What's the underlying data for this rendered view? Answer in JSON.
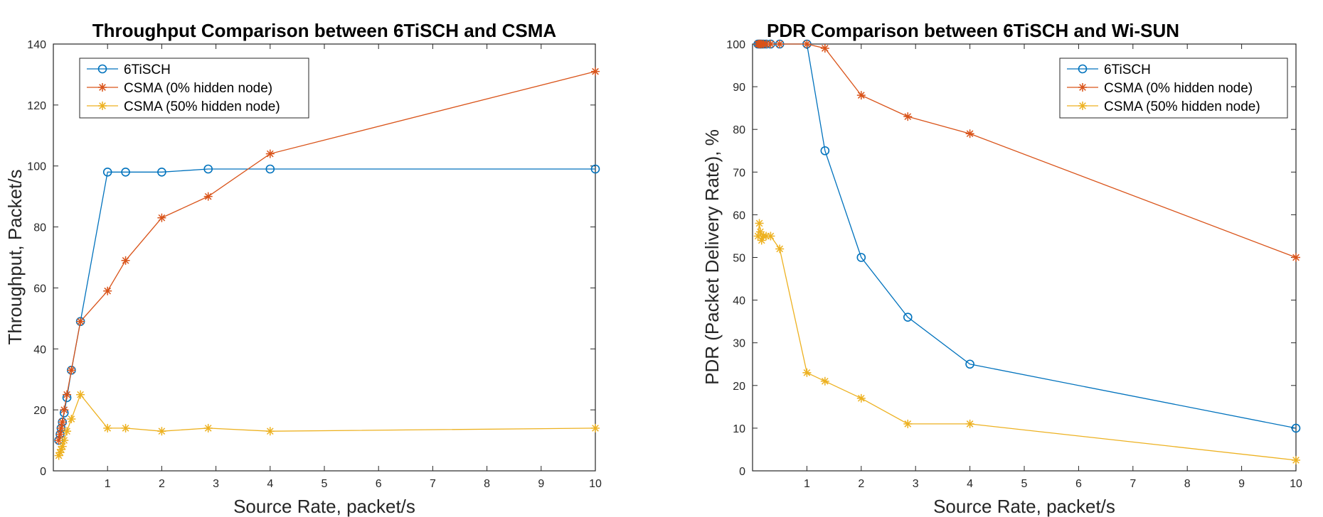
{
  "colors": {
    "blue": "#0072BD",
    "orange": "#D95319",
    "yellow": "#EDB120",
    "axis": "#262626"
  },
  "chart_data": [
    {
      "type": "line",
      "title": "Throughput Comparison between 6TiSCH and CSMA",
      "xlabel": "Source Rate, packet/s",
      "ylabel": "Throughput, Packet/s",
      "xlim": [
        0,
        10
      ],
      "ylim": [
        0,
        140
      ],
      "xticks": [
        1,
        2,
        3,
        4,
        5,
        6,
        7,
        8,
        9,
        10
      ],
      "yticks": [
        0,
        20,
        40,
        60,
        80,
        100,
        120,
        140
      ],
      "legend_position": "top-left",
      "series": [
        {
          "name": "6TiSCH",
          "color": "#0072BD",
          "marker": "circle",
          "x": [
            0.1,
            0.125,
            0.143,
            0.167,
            0.2,
            0.25,
            0.333,
            0.5,
            1,
            1.333,
            2,
            2.857,
            4,
            10
          ],
          "y": [
            10,
            12,
            14,
            16,
            19,
            24,
            33,
            49,
            98,
            98,
            98,
            99,
            99,
            99
          ]
        },
        {
          "name": "CSMA (0% hidden node)",
          "color": "#D95319",
          "marker": "asterisk",
          "x": [
            0.1,
            0.125,
            0.143,
            0.167,
            0.2,
            0.25,
            0.333,
            0.5,
            1,
            1.333,
            2,
            2.857,
            4,
            10
          ],
          "y": [
            10,
            12,
            14,
            16,
            20,
            25,
            33,
            49,
            59,
            69,
            83,
            90,
            104,
            131
          ]
        },
        {
          "name": "CSMA (50% hidden node)",
          "color": "#EDB120",
          "marker": "asterisk",
          "x": [
            0.1,
            0.125,
            0.143,
            0.167,
            0.2,
            0.25,
            0.333,
            0.5,
            1,
            1.333,
            2,
            2.857,
            4,
            10
          ],
          "y": [
            5,
            6,
            7,
            8,
            10,
            13,
            17,
            25,
            14,
            14,
            13,
            14,
            13,
            14
          ]
        }
      ]
    },
    {
      "type": "line",
      "title": "PDR Comparison between 6TiSCH and Wi-SUN",
      "xlabel": "Source Rate, packet/s",
      "ylabel": "PDR (Packet Delivery Rate), %",
      "xlim": [
        0,
        10
      ],
      "ylim": [
        0,
        100
      ],
      "xticks": [
        1,
        2,
        3,
        4,
        5,
        6,
        7,
        8,
        9,
        10
      ],
      "yticks": [
        0,
        10,
        20,
        30,
        40,
        50,
        60,
        70,
        80,
        90,
        100
      ],
      "legend_position": "top-right",
      "series": [
        {
          "name": "6TiSCH",
          "color": "#0072BD",
          "marker": "circle",
          "x": [
            0.1,
            0.125,
            0.143,
            0.167,
            0.2,
            0.25,
            0.333,
            0.5,
            1,
            1.333,
            2,
            2.857,
            4,
            10
          ],
          "y": [
            100,
            100,
            100,
            100,
            100,
            100,
            100,
            100,
            100,
            75,
            50,
            36,
            25,
            10
          ]
        },
        {
          "name": "CSMA (0% hidden node)",
          "color": "#D95319",
          "marker": "asterisk",
          "x": [
            0.1,
            0.125,
            0.143,
            0.167,
            0.2,
            0.25,
            0.333,
            0.5,
            1,
            1.333,
            2,
            2.857,
            4,
            10
          ],
          "y": [
            100,
            100,
            100,
            100,
            100,
            100,
            100,
            100,
            100,
            99,
            88,
            83,
            79,
            50
          ]
        },
        {
          "name": "CSMA (50% hidden node)",
          "color": "#EDB120",
          "marker": "asterisk",
          "x": [
            0.1,
            0.125,
            0.143,
            0.167,
            0.2,
            0.25,
            0.333,
            0.5,
            1,
            1.333,
            2,
            2.857,
            4,
            10
          ],
          "y": [
            55,
            58,
            56,
            54,
            55,
            55,
            55,
            52,
            23,
            21,
            17,
            11,
            11,
            2.5
          ]
        }
      ]
    }
  ]
}
